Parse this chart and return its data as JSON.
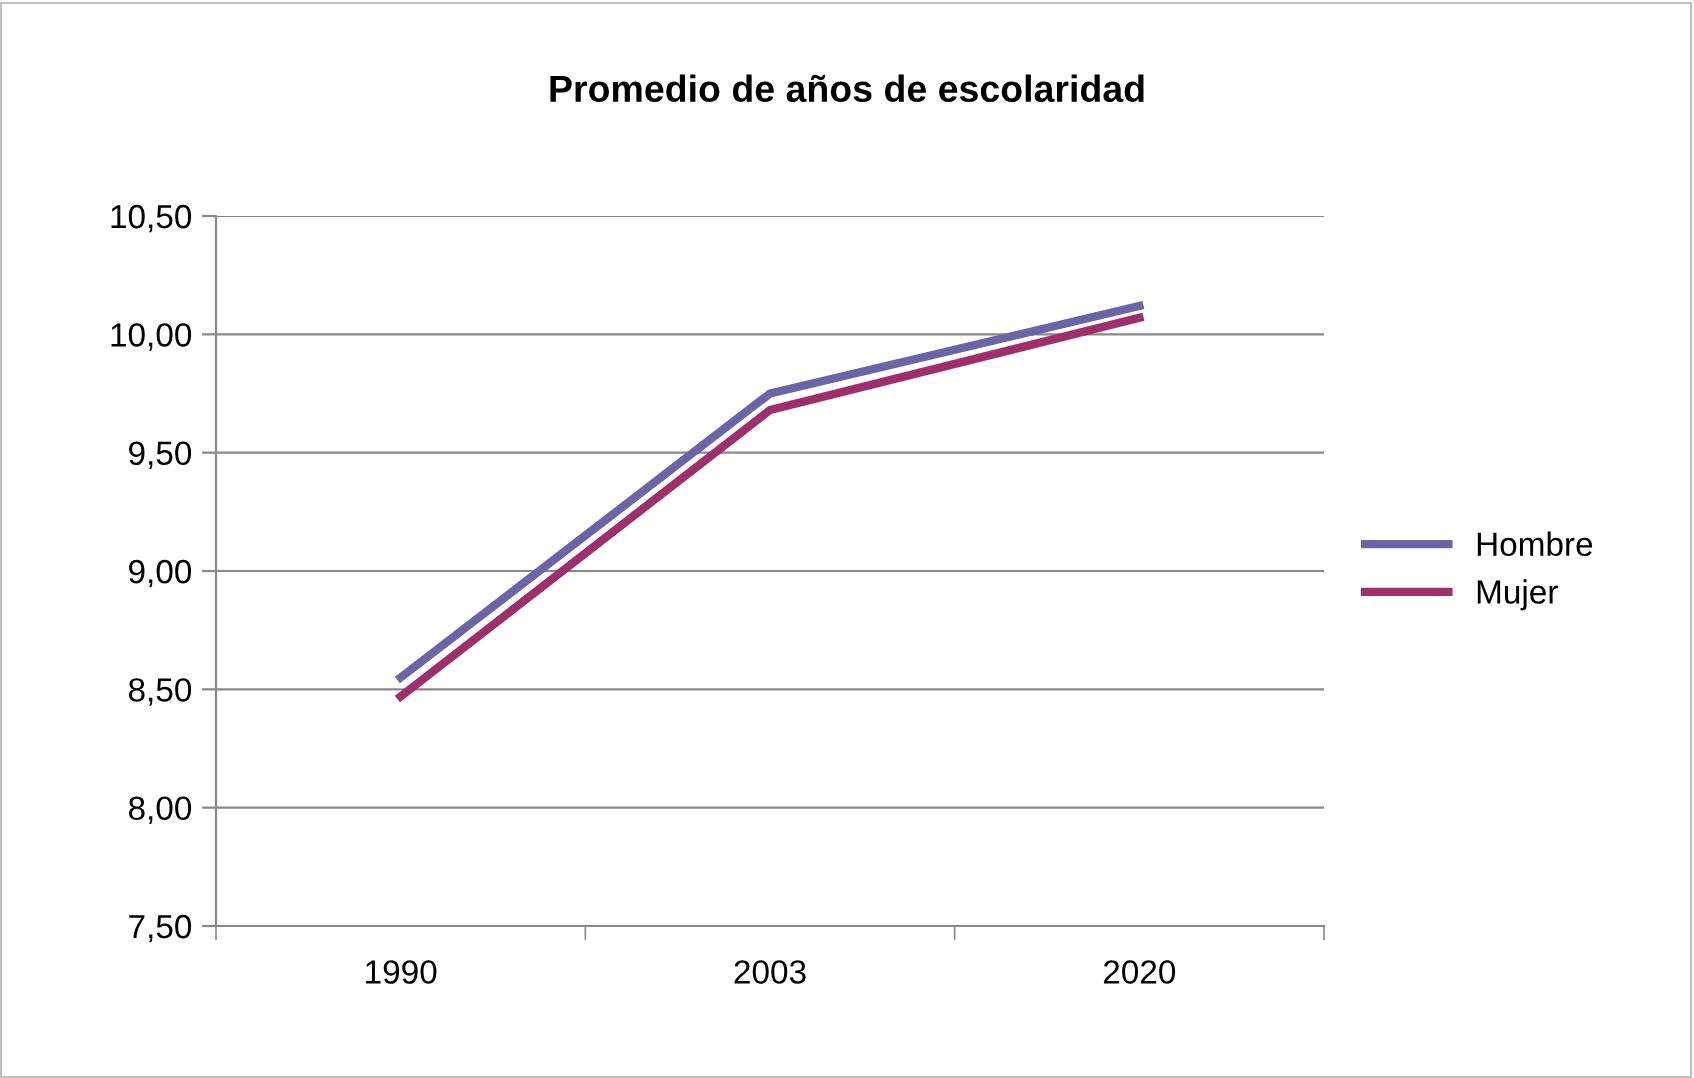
{
  "chart_data": {
    "type": "line",
    "title": "Promedio de años de escolaridad",
    "categories": [
      "1990",
      "2003",
      "2020"
    ],
    "series": [
      {
        "name": "Hombre",
        "color": "#6b65a8",
        "values": [
          8.55,
          9.75,
          10.12
        ]
      },
      {
        "name": "Mujer",
        "color": "#9e2f6a",
        "values": [
          8.47,
          9.68,
          10.07
        ]
      }
    ],
    "ylim": [
      7.5,
      10.5
    ],
    "yticks": [
      {
        "value": 7.5,
        "label": "7,50"
      },
      {
        "value": 8.0,
        "label": "8,00"
      },
      {
        "value": 8.5,
        "label": "8,50"
      },
      {
        "value": 9.0,
        "label": "9,00"
      },
      {
        "value": 9.5,
        "label": "9,50"
      },
      {
        "value": 10.0,
        "label": "10,00"
      },
      {
        "value": 10.5,
        "label": "10,50"
      }
    ],
    "grid": "y",
    "legend": "right",
    "marker": "none",
    "line_style": "solid"
  }
}
